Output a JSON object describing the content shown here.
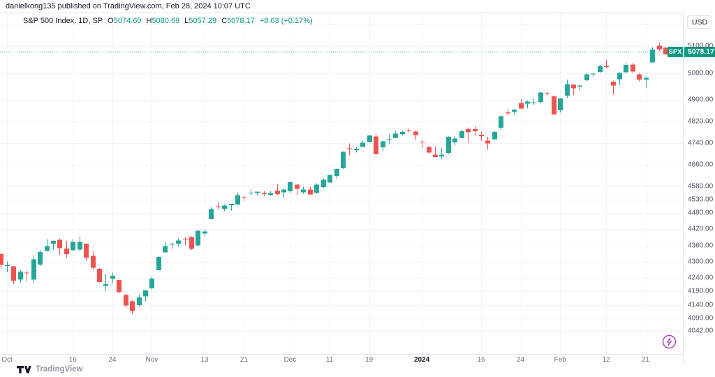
{
  "attribution": "danielkong135 published on TradingView.com, Feb 28, 2024 10:07 UTC",
  "legend": {
    "title": "S&P 500 Index, 1D, SP",
    "items": [
      {
        "k": "O",
        "v": "5074.60"
      },
      {
        "k": "H",
        "v": "5080.69"
      },
      {
        "k": "L",
        "v": "5057.29"
      },
      {
        "k": "C",
        "v": "5078.17"
      }
    ],
    "change": "+8.63 (+0.17%)"
  },
  "currency_button": "USD",
  "price_label": {
    "symbol": "SPX",
    "last_price": "5078.17"
  },
  "logo_text": "TradingView",
  "colors": {
    "up": "#26a69a",
    "down": "#ef5350",
    "badge": "#089981",
    "grid": "#f0f3fa",
    "axis_border": "#e0e3eb",
    "axis_text": "#50535e",
    "boost": "#ab47bc",
    "dark_text": "#131722"
  },
  "chart_data": {
    "type": "candlestick",
    "title": "S&P 500 Index",
    "interval": "1D",
    "exchange": "SP",
    "currency": "USD",
    "last_price": 5078.17,
    "y_axis_labels": [
      {
        "text": "5100.00",
        "price": 5100.0
      },
      {
        "text": "5000.00",
        "price": 5000.0
      },
      {
        "text": "4900.00",
        "price": 4900.0
      },
      {
        "text": "4820.00",
        "price": 4820.0
      },
      {
        "text": "4740.00",
        "price": 4740.0
      },
      {
        "text": "4660.00",
        "price": 4660.0
      },
      {
        "text": "4580.00",
        "price": 4580.0
      },
      {
        "text": "4530.00",
        "price": 4530.0
      },
      {
        "text": "4480.00",
        "price": 4480.0
      },
      {
        "text": "4420.00",
        "price": 4420.0
      },
      {
        "text": "4360.00",
        "price": 4360.0
      },
      {
        "text": "4300.00",
        "price": 4300.0
      },
      {
        "text": "4240.00",
        "price": 4240.0
      },
      {
        "text": "4190.00",
        "price": 4190.0
      },
      {
        "text": "4140.00",
        "price": 4140.0
      },
      {
        "text": "4090.00",
        "price": 4090.0
      },
      {
        "text": "4042.00",
        "price": 4042.0
      }
    ],
    "extra_gridline_prices": [
      5180.0
    ],
    "x_ticks": [
      {
        "label": "Oct",
        "index": 1,
        "major": false
      },
      {
        "label": "16",
        "index": 11,
        "major": false
      },
      {
        "label": "24",
        "index": 17,
        "major": false
      },
      {
        "label": "Nov",
        "index": 23,
        "major": false
      },
      {
        "label": "13",
        "index": 31,
        "major": false
      },
      {
        "label": "21",
        "index": 37,
        "major": false
      },
      {
        "label": "Dec",
        "index": 44,
        "major": false
      },
      {
        "label": "11",
        "index": 50,
        "major": false
      },
      {
        "label": "19",
        "index": 56,
        "major": false
      },
      {
        "label": "2024",
        "index": 64,
        "major": true
      },
      {
        "label": "16",
        "index": 73,
        "major": false
      },
      {
        "label": "24",
        "index": 79,
        "major": false
      },
      {
        "label": "Feb",
        "index": 85,
        "major": false
      },
      {
        "label": "12",
        "index": 92,
        "major": false
      },
      {
        "label": "21",
        "index": 98,
        "major": false
      }
    ],
    "candles": [
      [
        "2023-09-29",
        4328.2,
        4333.2,
        4274.9,
        4288.1
      ],
      [
        "2023-10-02",
        4284.5,
        4300.6,
        4260.2,
        4288.4
      ],
      [
        "2023-10-03",
        4282.6,
        4284.0,
        4216.5,
        4229.5
      ],
      [
        "2023-10-04",
        4233.8,
        4268.5,
        4220.5,
        4263.8
      ],
      [
        "2023-10-05",
        4258.7,
        4267.1,
        4225.9,
        4258.2
      ],
      [
        "2023-10-06",
        4233.1,
        4324.1,
        4219.6,
        4308.5
      ],
      [
        "2023-10-09",
        4289.0,
        4341.7,
        4283.8,
        4335.7
      ],
      [
        "2023-10-10",
        4339.8,
        4385.5,
        4339.6,
        4358.2
      ],
      [
        "2023-10-11",
        4366.6,
        4378.6,
        4345.3,
        4377.0
      ],
      [
        "2023-10-12",
        4380.9,
        4385.9,
        4325.4,
        4349.6
      ],
      [
        "2023-10-13",
        4348.6,
        4377.1,
        4311.9,
        4327.8
      ],
      [
        "2023-10-16",
        4342.4,
        4383.3,
        4342.4,
        4373.6
      ],
      [
        "2023-10-17",
        4344.8,
        4393.6,
        4337.5,
        4373.2
      ],
      [
        "2023-10-18",
        4367.3,
        4367.4,
        4303.8,
        4314.6
      ],
      [
        "2023-10-19",
        4321.4,
        4339.5,
        4269.7,
        4278.0
      ],
      [
        "2023-10-20",
        4273.9,
        4276.6,
        4223.0,
        4224.2
      ],
      [
        "2023-10-23",
        4210.4,
        4255.8,
        4189.2,
        4217.0
      ],
      [
        "2023-10-24",
        4235.8,
        4259.4,
        4219.4,
        4247.7
      ],
      [
        "2023-10-25",
        4232.4,
        4232.4,
        4181.4,
        4186.8
      ],
      [
        "2023-10-26",
        4175.9,
        4183.6,
        4127.9,
        4137.2
      ],
      [
        "2023-10-27",
        4152.9,
        4156.7,
        4103.8,
        4117.4
      ],
      [
        "2023-10-30",
        4139.4,
        4177.5,
        4132.9,
        4166.8
      ],
      [
        "2023-10-31",
        4171.3,
        4195.6,
        4153.1,
        4193.8
      ],
      [
        "2023-11-01",
        4201.3,
        4245.6,
        4197.7,
        4237.9
      ],
      [
        "2023-11-02",
        4268.3,
        4319.7,
        4268.3,
        4317.8
      ],
      [
        "2023-11-03",
        4334.2,
        4373.6,
        4334.2,
        4358.3
      ],
      [
        "2023-11-06",
        4364.3,
        4372.2,
        4347.5,
        4366.0
      ],
      [
        "2023-11-07",
        4366.2,
        4386.3,
        4355.4,
        4378.4
      ],
      [
        "2023-11-08",
        4384.4,
        4391.2,
        4359.8,
        4382.8
      ],
      [
        "2023-11-09",
        4391.4,
        4393.4,
        4343.9,
        4347.4
      ],
      [
        "2023-11-10",
        4360.0,
        4418.0,
        4353.3,
        4415.2
      ],
      [
        "2023-11-13",
        4404.0,
        4421.8,
        4393.8,
        4411.6
      ],
      [
        "2023-11-14",
        4458.0,
        4501.9,
        4458.0,
        4495.7
      ],
      [
        "2023-11-15",
        4505.4,
        4521.2,
        4495.3,
        4502.9
      ],
      [
        "2023-11-16",
        4497.0,
        4511.7,
        4487.8,
        4508.2
      ],
      [
        "2023-11-17",
        4509.6,
        4514.8,
        4489.6,
        4514.0
      ],
      [
        "2023-11-20",
        4511.7,
        4557.1,
        4510.4,
        4547.4
      ],
      [
        "2023-11-21",
        4538.8,
        4545.6,
        4525.5,
        4538.2
      ],
      [
        "2023-11-22",
        4553.0,
        4568.4,
        4545.1,
        4556.6
      ],
      [
        "2023-11-24",
        4555.2,
        4560.3,
        4546.3,
        4559.3
      ],
      [
        "2023-11-27",
        4554.9,
        4560.5,
        4542.9,
        4550.4
      ],
      [
        "2023-11-28",
        4548.8,
        4561.0,
        4545.6,
        4554.9
      ],
      [
        "2023-11-29",
        4563.8,
        4587.6,
        4547.1,
        4550.6
      ],
      [
        "2023-11-30",
        4557.0,
        4569.9,
        4537.2,
        4567.8
      ],
      [
        "2023-12-01",
        4560.9,
        4599.4,
        4555.0,
        4594.6
      ],
      [
        "2023-12-04",
        4586.2,
        4587.6,
        4546.7,
        4569.8
      ],
      [
        "2023-12-05",
        4557.2,
        4578.6,
        4551.7,
        4567.2
      ],
      [
        "2023-12-06",
        4568.0,
        4578.0,
        4546.5,
        4549.3
      ],
      [
        "2023-12-07",
        4556.0,
        4590.9,
        4552.1,
        4585.6
      ],
      [
        "2023-12-08",
        4576.2,
        4609.2,
        4574.0,
        4604.4
      ],
      [
        "2023-12-11",
        4593.4,
        4623.7,
        4593.4,
        4622.4
      ],
      [
        "2023-12-12",
        4618.3,
        4643.9,
        4608.1,
        4643.7
      ],
      [
        "2023-12-13",
        4646.2,
        4709.7,
        4643.2,
        4707.1
      ],
      [
        "2023-12-14",
        4721.0,
        4738.6,
        4694.3,
        4719.6
      ],
      [
        "2023-12-15",
        4714.2,
        4725.5,
        4704.7,
        4719.2
      ],
      [
        "2023-12-18",
        4725.6,
        4749.5,
        4725.6,
        4740.6
      ],
      [
        "2023-12-19",
        4743.7,
        4768.7,
        4743.7,
        4768.4
      ],
      [
        "2023-12-20",
        4764.7,
        4778.0,
        4697.8,
        4698.3
      ],
      [
        "2023-12-21",
        4724.3,
        4748.7,
        4708.4,
        4746.8
      ],
      [
        "2023-12-22",
        4753.9,
        4772.9,
        4736.8,
        4754.6
      ],
      [
        "2023-12-26",
        4758.9,
        4784.7,
        4758.4,
        4774.8
      ],
      [
        "2023-12-27",
        4773.5,
        4785.4,
        4768.9,
        4781.6
      ],
      [
        "2023-12-28",
        4786.4,
        4793.3,
        4780.2,
        4783.4
      ],
      [
        "2023-12-29",
        4782.9,
        4788.4,
        4752.0,
        4769.8
      ],
      [
        "2024-01-02",
        4745.2,
        4754.3,
        4722.7,
        4742.8
      ],
      [
        "2024-01-03",
        4725.1,
        4729.3,
        4699.7,
        4704.8
      ],
      [
        "2024-01-04",
        4697.4,
        4726.8,
        4687.5,
        4688.7
      ],
      [
        "2024-01-05",
        4690.6,
        4721.5,
        4682.1,
        4697.2
      ],
      [
        "2024-01-08",
        4703.7,
        4764.5,
        4699.8,
        4763.5
      ],
      [
        "2024-01-09",
        4741.9,
        4765.5,
        4730.4,
        4756.5
      ],
      [
        "2024-01-10",
        4759.9,
        4790.8,
        4756.2,
        4783.5
      ],
      [
        "2024-01-11",
        4792.1,
        4798.5,
        4739.6,
        4780.2
      ],
      [
        "2024-01-12",
        4791.2,
        4802.4,
        4768.0,
        4783.8
      ],
      [
        "2024-01-16",
        4771.1,
        4782.6,
        4747.7,
        4766.0
      ],
      [
        "2024-01-17",
        4748.7,
        4763.6,
        4714.8,
        4739.2
      ],
      [
        "2024-01-18",
        4753.9,
        4785.8,
        4752.0,
        4780.9
      ],
      [
        "2024-01-19",
        4796.3,
        4842.1,
        4785.9,
        4839.8
      ],
      [
        "2024-01-22",
        4853.4,
        4868.4,
        4844.1,
        4850.4
      ],
      [
        "2024-01-23",
        4856.8,
        4866.5,
        4844.4,
        4864.6
      ],
      [
        "2024-01-24",
        4888.6,
        4903.7,
        4865.9,
        4868.6
      ],
      [
        "2024-01-25",
        4886.7,
        4898.2,
        4869.3,
        4894.2
      ],
      [
        "2024-01-26",
        4888.9,
        4906.7,
        4881.5,
        4891.0
      ],
      [
        "2024-01-29",
        4892.9,
        4929.3,
        4887.4,
        4927.9
      ],
      [
        "2024-01-30",
        4925.9,
        4931.1,
        4916.3,
        4925.0
      ],
      [
        "2024-01-31",
        4914.0,
        4916.8,
        4845.2,
        4845.7
      ],
      [
        "2024-02-01",
        4861.1,
        4906.8,
        4853.5,
        4906.2
      ],
      [
        "2024-02-02",
        4916.1,
        4975.3,
        4907.9,
        4958.6
      ],
      [
        "2024-02-05",
        4957.2,
        4957.2,
        4918.1,
        4942.8
      ],
      [
        "2024-02-06",
        4950.3,
        4957.8,
        4934.9,
        4954.2
      ],
      [
        "2024-02-07",
        4973.1,
        4999.9,
        4969.1,
        4995.1
      ],
      [
        "2024-02-08",
        4995.2,
        5000.4,
        4987.1,
        4997.9
      ],
      [
        "2024-02-09",
        5004.2,
        5030.1,
        5000.3,
        5026.6
      ],
      [
        "2024-02-12",
        5026.8,
        5048.4,
        5016.8,
        5021.8
      ],
      [
        "2024-02-13",
        4967.9,
        4971.3,
        4920.3,
        4953.2
      ],
      [
        "2024-02-14",
        4976.4,
        5002.5,
        4956.5,
        5000.6
      ],
      [
        "2024-02-15",
        5003.1,
        5038.7,
        4999.5,
        5029.7
      ],
      [
        "2024-02-16",
        5031.1,
        5038.2,
        4999.4,
        5005.6
      ],
      [
        "2024-02-20",
        4995.2,
        5000.9,
        4967.9,
        4975.5
      ],
      [
        "2024-02-21",
        4975.5,
        4988.0,
        4946.0,
        4981.8
      ],
      [
        "2024-02-22",
        5038.8,
        5094.4,
        5038.8,
        5087.0
      ],
      [
        "2024-02-23",
        5100.9,
        5111.1,
        5081.5,
        5088.8
      ],
      [
        "2024-02-26",
        5093.0,
        5097.7,
        5068.9,
        5069.5
      ],
      [
        "2024-02-27",
        5074.6,
        5080.7,
        5057.3,
        5078.2
      ]
    ]
  }
}
